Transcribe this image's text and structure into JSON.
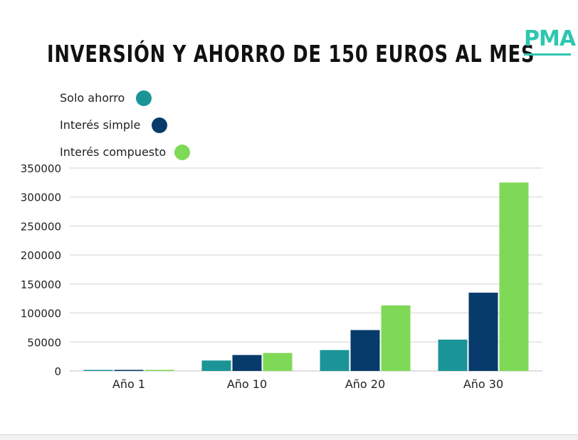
{
  "logo": {
    "text": "PMA"
  },
  "colors": {
    "solo_ahorro": "#1a9497",
    "interes_simple": "#073b6b",
    "interes_compuesto": "#7ed957",
    "grid": "#d3d3d3",
    "axis_text": "#222222"
  },
  "chart_data": {
    "type": "bar",
    "title": "INVERSIÓN Y AHORRO DE 150 EUROS AL MES",
    "xlabel": "",
    "ylabel": "",
    "ylim": [
      0,
      350000
    ],
    "yticks": [
      0,
      50000,
      100000,
      150000,
      200000,
      250000,
      300000,
      350000
    ],
    "ytick_labels": [
      "0",
      "50000",
      "100000",
      "150000",
      "200000",
      "250000",
      "300000",
      "350000"
    ],
    "grid": true,
    "legend_position": "top-left",
    "categories": [
      "Año 1",
      "Año 10",
      "Año 20",
      "Año 30"
    ],
    "series": [
      {
        "name": "Solo ahorro",
        "color": "#1a9497",
        "values": [
          1800,
          18000,
          36000,
          54000
        ]
      },
      {
        "name": "Interés simple",
        "color": "#073b6b",
        "values": [
          1850,
          27500,
          70500,
          135000
        ]
      },
      {
        "name": "Interés compuesto",
        "color": "#7ed957",
        "values": [
          1860,
          31000,
          113000,
          325000
        ]
      }
    ]
  }
}
